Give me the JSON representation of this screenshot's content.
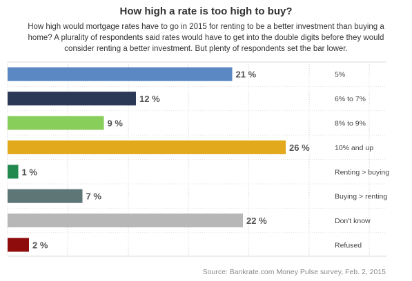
{
  "chart_data": {
    "type": "bar",
    "orientation": "horizontal",
    "title": "How high a rate is too high to buy?",
    "subtitle": "How high would mortgage rates have to go in 2015 for renting to be a better investment than buying a home? A plurality of respondents said rates would have to get into the double digits before they would consider renting a better investment. But plenty of respondents set the bar lower.",
    "categories": [
      "5%",
      "6% to 7%",
      "8% to 9%",
      "10% and up",
      "Renting > buying",
      "Buying > renting",
      "Don't know",
      "Refused"
    ],
    "values": [
      21,
      12,
      9,
      26,
      1,
      7,
      22,
      2
    ],
    "value_suffix": " %",
    "colors": [
      "#5b87c3",
      "#2c3956",
      "#88ce5a",
      "#e3a91d",
      "#22894f",
      "#5f7676",
      "#b7b7b7",
      "#8e0c0c"
    ],
    "xlim": [
      0,
      30
    ],
    "grid": "vertical dotted lines",
    "legend": "none",
    "source": "Source: Bankrate.com Money Pulse survey, Feb. 2, 2015"
  }
}
